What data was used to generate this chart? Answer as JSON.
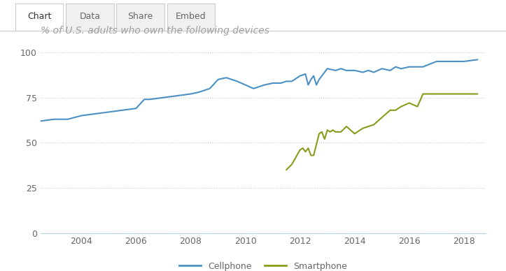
{
  "title": "% of U.S. adults who own the following devices",
  "tab_labels": [
    "Chart",
    "Data",
    "Share",
    "Embed"
  ],
  "bg_color": "#ffffff",
  "plot_bg_color": "#ffffff",
  "title_color": "#a0a0a0",
  "cellphone_color": "#4a90c4",
  "smartphone_color": "#8b9a1b",
  "grid_color": "#cccccc",
  "tick_color": "#666666",
  "ylim": [
    0,
    105
  ],
  "yticks": [
    0,
    25,
    50,
    75,
    100
  ],
  "xlim": [
    2002.5,
    2018.8
  ],
  "xticks": [
    2004,
    2006,
    2008,
    2010,
    2012,
    2014,
    2016,
    2018
  ],
  "cellphone_data": [
    [
      2002.5,
      62
    ],
    [
      2003.0,
      63
    ],
    [
      2003.5,
      63
    ],
    [
      2004.0,
      65
    ],
    [
      2004.5,
      66
    ],
    [
      2005.0,
      67
    ],
    [
      2005.5,
      68
    ],
    [
      2006.0,
      69
    ],
    [
      2006.3,
      74
    ],
    [
      2006.5,
      74
    ],
    [
      2007.0,
      75
    ],
    [
      2007.5,
      76
    ],
    [
      2008.0,
      77
    ],
    [
      2008.3,
      78
    ],
    [
      2008.7,
      80
    ],
    [
      2009.0,
      85
    ],
    [
      2009.3,
      86
    ],
    [
      2009.5,
      85
    ],
    [
      2009.7,
      84
    ],
    [
      2010.0,
      82
    ],
    [
      2010.3,
      80
    ],
    [
      2010.5,
      81
    ],
    [
      2010.7,
      82
    ],
    [
      2011.0,
      83
    ],
    [
      2011.3,
      83
    ],
    [
      2011.5,
      84
    ],
    [
      2011.7,
      84
    ],
    [
      2012.0,
      87
    ],
    [
      2012.2,
      88
    ],
    [
      2012.3,
      82
    ],
    [
      2012.4,
      85
    ],
    [
      2012.5,
      87
    ],
    [
      2012.6,
      82
    ],
    [
      2012.7,
      85
    ],
    [
      2012.8,
      87
    ],
    [
      2013.0,
      91
    ],
    [
      2013.3,
      90
    ],
    [
      2013.5,
      91
    ],
    [
      2013.7,
      90
    ],
    [
      2014.0,
      90
    ],
    [
      2014.3,
      89
    ],
    [
      2014.5,
      90
    ],
    [
      2014.7,
      89
    ],
    [
      2015.0,
      91
    ],
    [
      2015.3,
      90
    ],
    [
      2015.5,
      92
    ],
    [
      2015.7,
      91
    ],
    [
      2016.0,
      92
    ],
    [
      2016.5,
      92
    ],
    [
      2017.0,
      95
    ],
    [
      2017.5,
      95
    ],
    [
      2018.0,
      95
    ],
    [
      2018.5,
      96
    ]
  ],
  "smartphone_data": [
    [
      2011.5,
      35
    ],
    [
      2011.7,
      38
    ],
    [
      2012.0,
      46
    ],
    [
      2012.1,
      47
    ],
    [
      2012.2,
      45
    ],
    [
      2012.3,
      47
    ],
    [
      2012.4,
      43
    ],
    [
      2012.5,
      43
    ],
    [
      2012.7,
      55
    ],
    [
      2012.8,
      56
    ],
    [
      2012.9,
      52
    ],
    [
      2013.0,
      57
    ],
    [
      2013.1,
      56
    ],
    [
      2013.2,
      57
    ],
    [
      2013.3,
      56
    ],
    [
      2013.5,
      56
    ],
    [
      2013.7,
      59
    ],
    [
      2014.0,
      55
    ],
    [
      2014.3,
      58
    ],
    [
      2014.5,
      59
    ],
    [
      2014.7,
      60
    ],
    [
      2015.0,
      64
    ],
    [
      2015.3,
      68
    ],
    [
      2015.5,
      68
    ],
    [
      2015.7,
      70
    ],
    [
      2016.0,
      72
    ],
    [
      2016.3,
      70
    ],
    [
      2016.5,
      77
    ],
    [
      2016.7,
      77
    ],
    [
      2017.0,
      77
    ],
    [
      2017.5,
      77
    ],
    [
      2018.0,
      77
    ],
    [
      2018.5,
      77
    ]
  ],
  "legend_cellphone": "Cellphone",
  "legend_smartphone": "Smartphone",
  "figsize": [
    7.23,
    3.88
  ],
  "dpi": 100
}
